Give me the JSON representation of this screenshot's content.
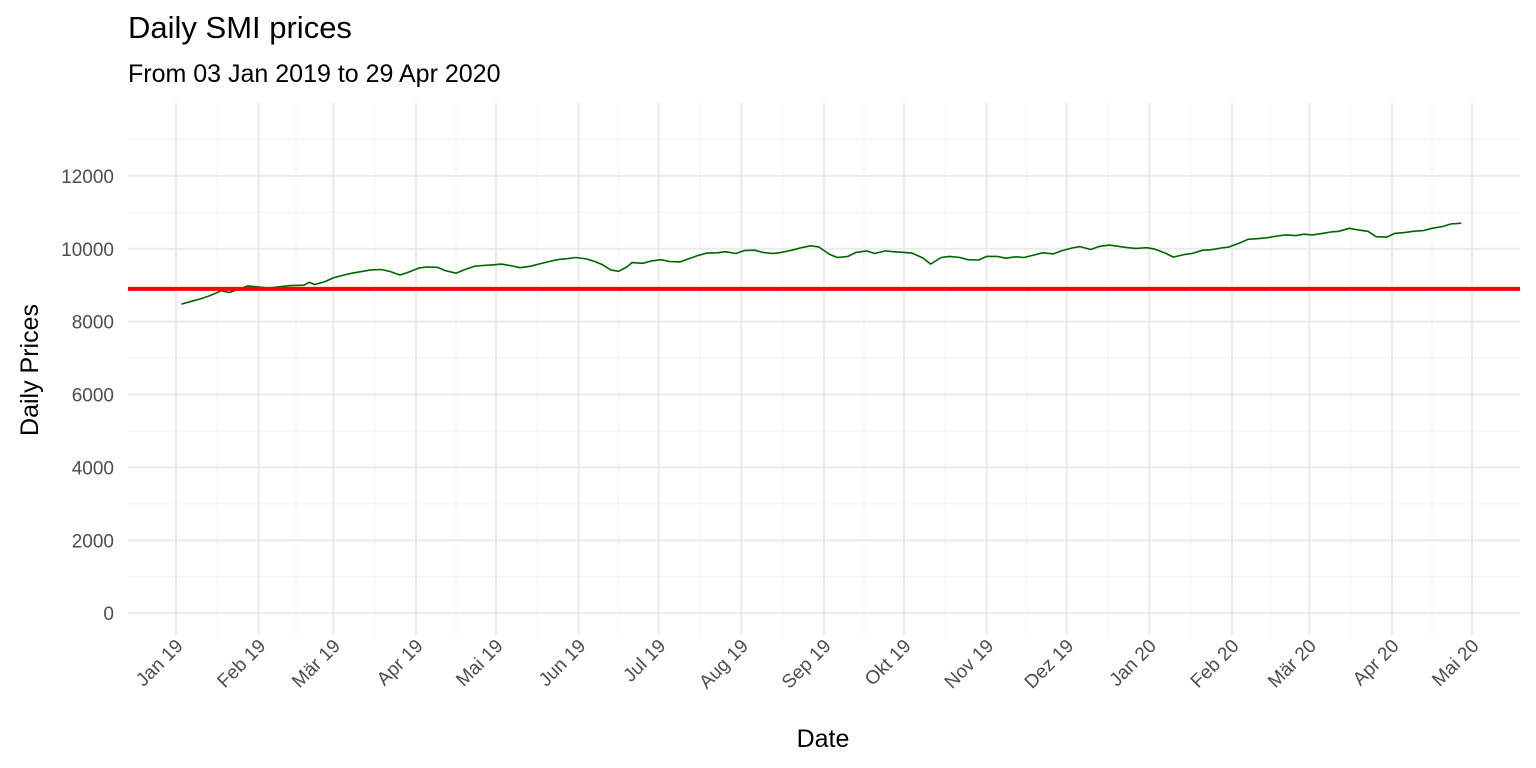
{
  "chart_data": {
    "type": "line",
    "title": "Daily SMI prices",
    "subtitle": "From 03 Jan 2019 to 29 Apr 2020",
    "xlabel": "Date",
    "ylabel": "Daily Prices",
    "xlim": [
      "2018-12-14",
      "2020-05-19"
    ],
    "ylim": [
      -600,
      14000
    ],
    "x_ticks": [
      {
        "date": "2019-01-01",
        "label": "Jan 19"
      },
      {
        "date": "2019-02-01",
        "label": "Feb 19"
      },
      {
        "date": "2019-03-01",
        "label": "Mär 19"
      },
      {
        "date": "2019-04-01",
        "label": "Apr 19"
      },
      {
        "date": "2019-05-01",
        "label": "Mai 19"
      },
      {
        "date": "2019-06-01",
        "label": "Jun 19"
      },
      {
        "date": "2019-07-01",
        "label": "Jul 19"
      },
      {
        "date": "2019-08-01",
        "label": "Aug 19"
      },
      {
        "date": "2019-09-01",
        "label": "Sep 19"
      },
      {
        "date": "2019-10-01",
        "label": "Okt 19"
      },
      {
        "date": "2019-11-01",
        "label": "Nov 19"
      },
      {
        "date": "2019-12-01",
        "label": "Dez 19"
      },
      {
        "date": "2020-01-01",
        "label": "Jan 20"
      },
      {
        "date": "2020-02-01",
        "label": "Feb 20"
      },
      {
        "date": "2020-03-01",
        "label": "Mär 20"
      },
      {
        "date": "2020-04-01",
        "label": "Apr 20"
      },
      {
        "date": "2020-05-01",
        "label": "Mai 20"
      }
    ],
    "y_ticks": [
      0,
      2000,
      4000,
      6000,
      8000,
      10000,
      12000
    ],
    "grid": true,
    "hline": {
      "y": 8900,
      "color": "#ff0000"
    },
    "series": [
      {
        "color": "#006400",
        "points": [
          [
            "2019-01-03",
            8480
          ],
          [
            "2019-01-07",
            8560
          ],
          [
            "2019-01-10",
            8620
          ],
          [
            "2019-01-14",
            8720
          ],
          [
            "2019-01-18",
            8850
          ],
          [
            "2019-01-21",
            8800
          ],
          [
            "2019-01-25",
            8900
          ],
          [
            "2019-01-28",
            8980
          ],
          [
            "2019-02-01",
            8950
          ],
          [
            "2019-02-05",
            8920
          ],
          [
            "2019-02-08",
            8950
          ],
          [
            "2019-02-13",
            8990
          ],
          [
            "2019-02-18",
            9000
          ],
          [
            "2019-02-20",
            9080
          ],
          [
            "2019-02-22",
            9020
          ],
          [
            "2019-02-26",
            9100
          ],
          [
            "2019-03-01",
            9200
          ],
          [
            "2019-03-05",
            9280
          ],
          [
            "2019-03-08",
            9330
          ],
          [
            "2019-03-12",
            9380
          ],
          [
            "2019-03-15",
            9420
          ],
          [
            "2019-03-19",
            9430
          ],
          [
            "2019-03-22",
            9380
          ],
          [
            "2019-03-26",
            9280
          ],
          [
            "2019-03-29",
            9350
          ],
          [
            "2019-04-02",
            9470
          ],
          [
            "2019-04-05",
            9500
          ],
          [
            "2019-04-09",
            9490
          ],
          [
            "2019-04-12",
            9400
          ],
          [
            "2019-04-16",
            9330
          ],
          [
            "2019-04-19",
            9420
          ],
          [
            "2019-04-23",
            9520
          ],
          [
            "2019-04-26",
            9540
          ],
          [
            "2019-04-30",
            9560
          ],
          [
            "2019-05-03",
            9580
          ],
          [
            "2019-05-07",
            9530
          ],
          [
            "2019-05-10",
            9480
          ],
          [
            "2019-05-14",
            9520
          ],
          [
            "2019-05-17",
            9580
          ],
          [
            "2019-05-21",
            9650
          ],
          [
            "2019-05-24",
            9700
          ],
          [
            "2019-05-28",
            9730
          ],
          [
            "2019-05-31",
            9760
          ],
          [
            "2019-06-04",
            9720
          ],
          [
            "2019-06-07",
            9650
          ],
          [
            "2019-06-10",
            9560
          ],
          [
            "2019-06-13",
            9420
          ],
          [
            "2019-06-16",
            9380
          ],
          [
            "2019-06-19",
            9500
          ],
          [
            "2019-06-21",
            9620
          ],
          [
            "2019-06-25",
            9600
          ],
          [
            "2019-06-28",
            9660
          ],
          [
            "2019-07-02",
            9700
          ],
          [
            "2019-07-05",
            9650
          ],
          [
            "2019-07-09",
            9640
          ],
          [
            "2019-07-12",
            9720
          ],
          [
            "2019-07-16",
            9820
          ],
          [
            "2019-07-19",
            9880
          ],
          [
            "2019-07-23",
            9890
          ],
          [
            "2019-07-26",
            9920
          ],
          [
            "2019-07-30",
            9870
          ],
          [
            "2019-08-02",
            9950
          ],
          [
            "2019-08-06",
            9960
          ],
          [
            "2019-08-09",
            9900
          ],
          [
            "2019-08-13",
            9870
          ],
          [
            "2019-08-16",
            9900
          ],
          [
            "2019-08-20",
            9960
          ],
          [
            "2019-08-23",
            10020
          ],
          [
            "2019-08-27",
            10080
          ],
          [
            "2019-08-30",
            10050
          ],
          [
            "2019-09-03",
            9850
          ],
          [
            "2019-09-06",
            9760
          ],
          [
            "2019-09-10",
            9790
          ],
          [
            "2019-09-13",
            9900
          ],
          [
            "2019-09-17",
            9940
          ],
          [
            "2019-09-20",
            9870
          ],
          [
            "2019-09-24",
            9940
          ],
          [
            "2019-09-27",
            9920
          ],
          [
            "2019-10-01",
            9900
          ],
          [
            "2019-10-04",
            9880
          ],
          [
            "2019-10-08",
            9750
          ],
          [
            "2019-10-11",
            9580
          ],
          [
            "2019-10-15",
            9760
          ],
          [
            "2019-10-18",
            9790
          ],
          [
            "2019-10-22",
            9760
          ],
          [
            "2019-10-25",
            9700
          ],
          [
            "2019-10-29",
            9690
          ],
          [
            "2019-11-01",
            9790
          ],
          [
            "2019-11-05",
            9790
          ],
          [
            "2019-11-08",
            9740
          ],
          [
            "2019-11-12",
            9780
          ],
          [
            "2019-11-15",
            9760
          ],
          [
            "2019-11-19",
            9830
          ],
          [
            "2019-11-22",
            9890
          ],
          [
            "2019-11-26",
            9860
          ],
          [
            "2019-11-29",
            9940
          ],
          [
            "2019-12-03",
            10020
          ],
          [
            "2019-12-06",
            10060
          ],
          [
            "2019-12-10",
            9980
          ],
          [
            "2019-12-13",
            10060
          ],
          [
            "2019-12-17",
            10100
          ],
          [
            "2019-12-20",
            10070
          ],
          [
            "2019-12-24",
            10030
          ],
          [
            "2019-12-27",
            10010
          ],
          [
            "2019-12-31",
            10030
          ],
          [
            "2020-01-03",
            9990
          ],
          [
            "2020-01-07",
            9880
          ],
          [
            "2020-01-10",
            9770
          ],
          [
            "2020-01-14",
            9840
          ],
          [
            "2020-01-17",
            9870
          ],
          [
            "2020-01-21",
            9960
          ],
          [
            "2020-01-24",
            9970
          ],
          [
            "2020-01-28",
            10020
          ],
          [
            "2020-01-31",
            10050
          ],
          [
            "2020-02-04",
            10160
          ],
          [
            "2020-02-07",
            10260
          ],
          [
            "2020-02-11",
            10280
          ],
          [
            "2020-02-14",
            10300
          ],
          [
            "2020-02-18",
            10350
          ],
          [
            "2020-02-21",
            10380
          ],
          [
            "2020-02-25",
            10360
          ],
          [
            "2020-02-28",
            10400
          ],
          [
            "2020-03-02",
            10380
          ],
          [
            "2020-03-05",
            10410
          ],
          [
            "2020-03-09",
            10460
          ],
          [
            "2020-03-12",
            10480
          ],
          [
            "2020-03-16",
            10560
          ],
          [
            "2020-03-19",
            10520
          ],
          [
            "2020-03-23",
            10480
          ],
          [
            "2020-03-26",
            10330
          ],
          [
            "2020-03-30",
            10320
          ],
          [
            "2020-04-02",
            10420
          ],
          [
            "2020-04-06",
            10450
          ],
          [
            "2020-04-09",
            10480
          ],
          [
            "2020-04-13",
            10500
          ],
          [
            "2020-04-16",
            10560
          ],
          [
            "2020-04-20",
            10610
          ],
          [
            "2020-04-23",
            10680
          ],
          [
            "2020-04-27",
            10700
          ]
        ]
      }
    ]
  }
}
